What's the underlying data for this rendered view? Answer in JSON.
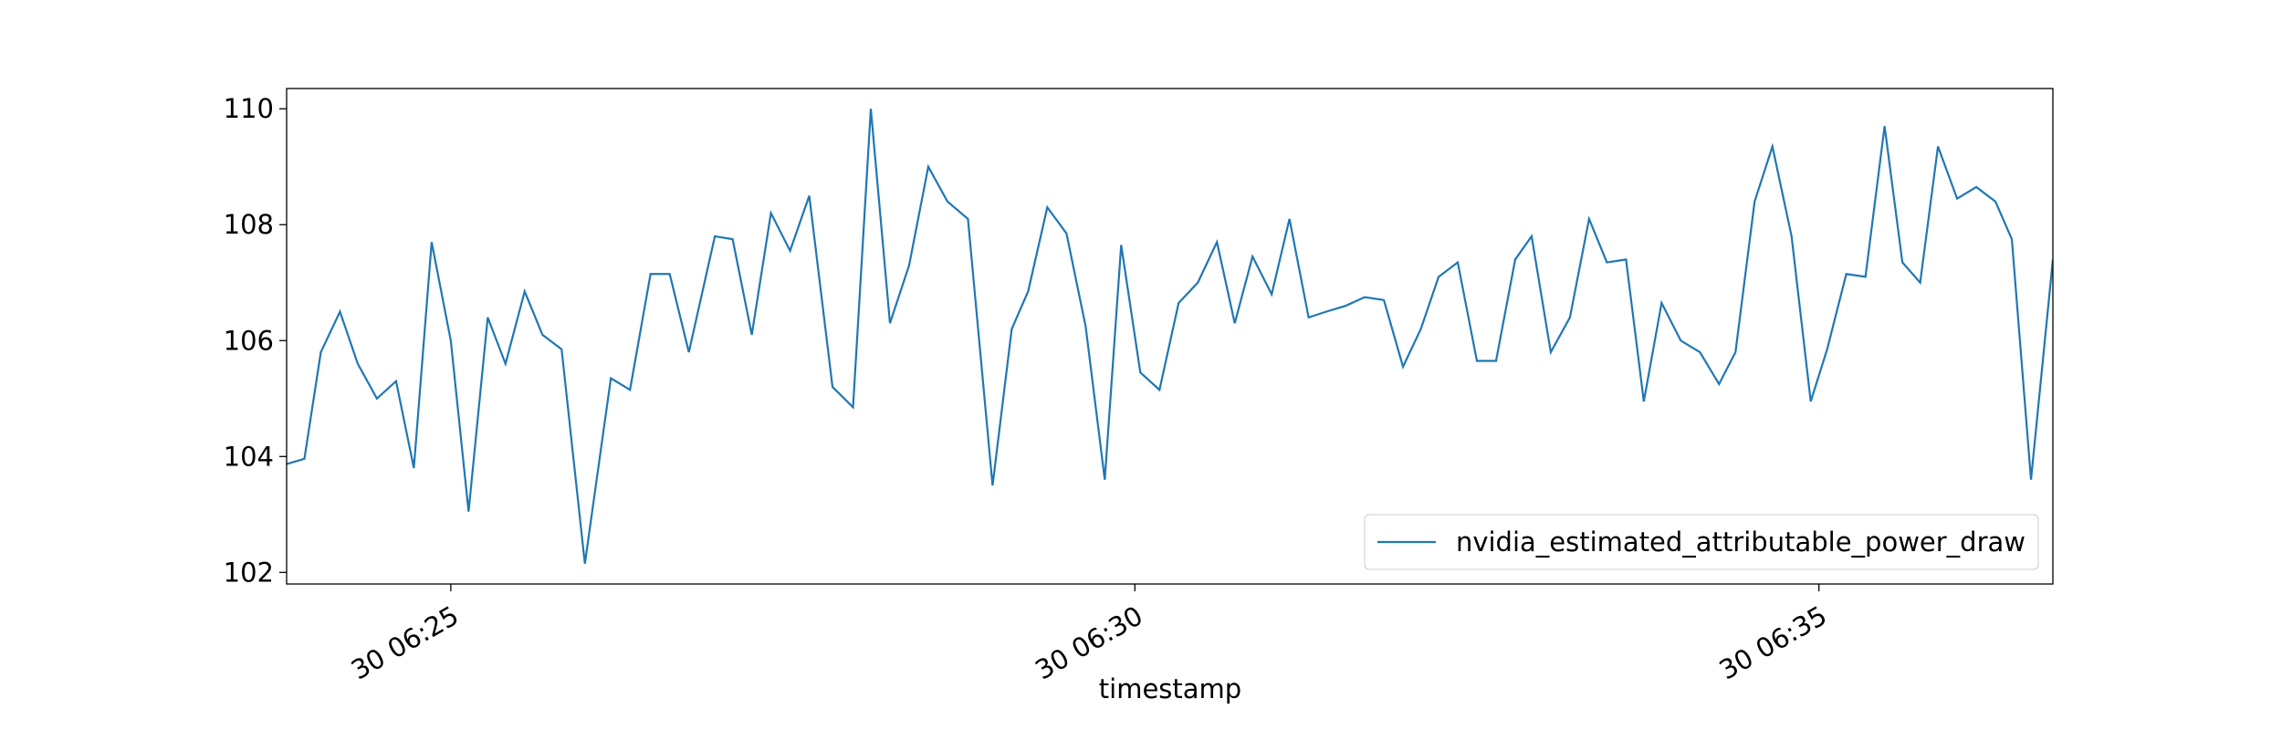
{
  "chart_data": {
    "type": "line",
    "x_label": "timestamp",
    "x": [
      23.8,
      23.93,
      24.05,
      24.19,
      24.32,
      24.46,
      24.6,
      24.73,
      24.86,
      25.0,
      25.13,
      25.27,
      25.4,
      25.54,
      25.67,
      25.81,
      25.98,
      26.17,
      26.31,
      26.46,
      26.6,
      26.74,
      26.93,
      27.06,
      27.2,
      27.34,
      27.48,
      27.62,
      27.79,
      27.94,
      28.07,
      28.21,
      28.35,
      28.49,
      28.63,
      28.78,
      28.96,
      29.1,
      29.22,
      29.36,
      29.5,
      29.64,
      29.78,
      29.9,
      30.04,
      30.18,
      30.32,
      30.46,
      30.6,
      30.73,
      30.86,
      31.0,
      31.13,
      31.27,
      31.4,
      31.54,
      31.68,
      31.82,
      31.96,
      32.09,
      32.22,
      32.36,
      32.5,
      32.64,
      32.78,
      32.9,
      33.04,
      33.18,
      33.32,
      33.45,
      33.59,
      33.72,
      33.85,
      33.99,
      34.13,
      34.27,
      34.39,
      34.53,
      34.66,
      34.8,
      34.94,
      35.06,
      35.2,
      35.34,
      35.48,
      35.61,
      35.74,
      35.87,
      36.01,
      36.15,
      36.29,
      36.41,
      36.55,
      36.71
    ],
    "series": [
      {
        "name": "nvidia_estimated_attributable_power_draw",
        "color": "#1f77b4",
        "values": [
          103.87,
          103.96,
          105.8,
          106.5,
          105.6,
          105.0,
          105.3,
          103.8,
          107.7,
          106.0,
          103.05,
          106.4,
          105.6,
          106.85,
          106.1,
          105.85,
          102.15,
          105.35,
          105.15,
          107.15,
          107.15,
          105.8,
          107.8,
          107.75,
          106.1,
          108.2,
          107.55,
          108.5,
          105.2,
          104.85,
          110.0,
          106.3,
          107.3,
          109.0,
          108.4,
          108.1,
          103.5,
          106.2,
          106.85,
          108.3,
          107.85,
          106.25,
          103.6,
          107.65,
          105.45,
          105.15,
          106.65,
          107.0,
          107.7,
          106.3,
          107.45,
          106.8,
          108.1,
          106.4,
          106.5,
          106.6,
          106.75,
          106.7,
          105.55,
          106.2,
          107.1,
          107.35,
          105.65,
          105.65,
          107.4,
          107.8,
          105.8,
          106.4,
          108.1,
          107.35,
          107.4,
          104.95,
          106.65,
          106.0,
          105.8,
          105.25,
          105.8,
          108.4,
          109.35,
          107.8,
          104.95,
          105.85,
          107.15,
          107.1,
          109.7,
          107.35,
          107.0,
          109.35,
          108.45,
          108.65,
          108.4,
          107.75,
          103.6,
          107.4
        ]
      }
    ],
    "xlim": [
      23.8,
      36.71
    ],
    "xticks": [
      {
        "value": 25,
        "label": "30 06:25"
      },
      {
        "value": 30,
        "label": "30 06:30"
      },
      {
        "value": 35,
        "label": "30 06:35"
      }
    ],
    "ylim": [
      101.8,
      110.35
    ],
    "yticks": [
      102,
      104,
      106,
      108,
      110
    ],
    "legend": "lower right"
  }
}
